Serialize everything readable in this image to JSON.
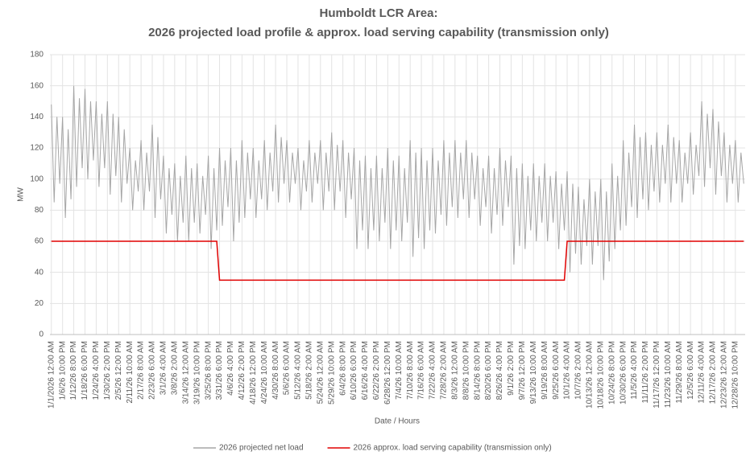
{
  "chart_data": {
    "type": "line",
    "title": [
      "Humboldt LCR Area:",
      "2026 projected load profile & approx. load serving capability (transmission only)"
    ],
    "xlabel": "Date / Hours",
    "ylabel": "MW",
    "categories": [
      "1/1/2026 12:00 AM",
      null,
      null,
      null,
      "1/6/26 10:00 PM",
      null,
      null,
      null,
      "1/12/26 8:00 PM",
      null,
      null,
      null,
      "1/18/26 6:00 PM",
      null,
      null,
      null,
      "1/24/26 4:00 PM",
      null,
      null,
      null,
      "1/30/26 2:00 PM",
      null,
      null,
      null,
      "2/5/26 12:00 PM",
      null,
      null,
      null,
      "2/11/26 10:00 AM",
      null,
      null,
      null,
      "2/17/26 8:00 AM",
      null,
      null,
      null,
      "2/23/26 6:00 AM",
      null,
      null,
      null,
      "3/1/26 4:00 AM",
      null,
      null,
      null,
      "3/8/26 2:00 AM",
      null,
      null,
      null,
      "3/14/26 12:00 AM",
      null,
      null,
      null,
      "3/19/26 10:00 PM",
      null,
      null,
      null,
      "3/25/26 8:00 PM",
      null,
      null,
      null,
      "3/31/26 6:00 PM",
      null,
      null,
      null,
      "4/6/26 4:00 PM",
      null,
      null,
      null,
      "4/12/26 2:00 PM",
      null,
      null,
      null,
      "4/18/26 12:00 PM",
      null,
      null,
      null,
      "4/24/26 10:00 AM",
      null,
      null,
      null,
      "4/30/26 8:00 AM",
      null,
      null,
      null,
      "5/6/26 6:00 AM",
      null,
      null,
      null,
      "5/12/26 4:00 AM",
      null,
      null,
      null,
      "5/18/26 2:00 AM",
      null,
      null,
      null,
      "5/24/26 12:00 AM",
      null,
      null,
      null,
      "5/29/26 10:00 PM",
      null,
      null,
      null,
      "6/4/26 8:00 PM",
      null,
      null,
      null,
      "6/10/26 6:00 PM",
      null,
      null,
      null,
      "6/16/26 4:00 PM",
      null,
      null,
      null,
      "6/22/26 2:00 PM",
      null,
      null,
      null,
      "6/28/26 12:00 PM",
      null,
      null,
      null,
      "7/4/26 10:00 AM",
      null,
      null,
      null,
      "7/10/26 8:00 AM",
      null,
      null,
      null,
      "7/16/26 6:00 AM",
      null,
      null,
      null,
      "7/22/26 4:00 AM",
      null,
      null,
      null,
      "7/28/26 2:00 AM",
      null,
      null,
      null,
      "8/3/26 12:00 AM",
      null,
      null,
      null,
      "8/8/26 10:00 PM",
      null,
      null,
      null,
      "8/14/26 8:00 PM",
      null,
      null,
      null,
      "8/20/26 6:00 PM",
      null,
      null,
      null,
      "8/26/26 4:00 PM",
      null,
      null,
      null,
      "9/1/26 2:00 PM",
      null,
      null,
      null,
      "9/7/26 12:00 PM",
      null,
      null,
      null,
      "9/13/26 10:00 AM",
      null,
      null,
      null,
      "9/19/26 8:00 AM",
      null,
      null,
      null,
      "9/25/26 6:00 AM",
      null,
      null,
      null,
      "10/1/26 4:00 AM",
      null,
      null,
      null,
      "10/7/26 2:00 AM",
      null,
      null,
      null,
      "10/13/26 12:00 AM",
      null,
      null,
      null,
      "10/18/26 10:00 PM",
      null,
      null,
      null,
      "10/24/26 8:00 PM",
      null,
      null,
      null,
      "10/30/26 6:00 PM",
      null,
      null,
      null,
      "11/5/26 4:00 PM",
      null,
      null,
      null,
      "11/11/26 2:00 PM",
      null,
      null,
      null,
      "11/17/26 12:00 PM",
      null,
      null,
      null,
      "11/23/26 10:00 AM",
      null,
      null,
      null,
      "11/29/26 8:00 AM",
      null,
      null,
      null,
      "12/5/26 6:00 AM",
      null,
      null,
      null,
      "12/11/26 4:00 AM",
      null,
      null,
      null,
      "12/17/26 2:00 AM",
      null,
      null,
      null,
      "12/23/26 12:00 AM",
      null,
      null,
      null,
      "12/28/26 10:00 PM",
      null,
      null,
      null
    ],
    "series": [
      {
        "name": "2026 projected net load",
        "color": "#a6a6a6",
        "values": [
          148,
          85,
          140,
          97,
          140,
          75,
          132,
          87,
          160,
          95,
          152,
          107,
          158,
          100,
          150,
          112,
          150,
          95,
          142,
          107,
          150,
          90,
          142,
          102,
          140,
          85,
          132,
          97,
          120,
          80,
          112,
          92,
          125,
          80,
          117,
          92,
          135,
          75,
          127,
          87,
          115,
          65,
          107,
          77,
          110,
          60,
          102,
          72,
          115,
          60,
          107,
          72,
          110,
          65,
          102,
          77,
          115,
          55,
          107,
          67,
          120,
          70,
          112,
          82,
          120,
          60,
          112,
          72,
          125,
          75,
          117,
          87,
          120,
          75,
          112,
          87,
          125,
          80,
          117,
          92,
          135,
          85,
          127,
          97,
          125,
          85,
          117,
          97,
          120,
          80,
          112,
          92,
          125,
          85,
          117,
          97,
          125,
          80,
          117,
          92,
          130,
          80,
          122,
          92,
          125,
          75,
          117,
          87,
          120,
          55,
          112,
          67,
          115,
          55,
          107,
          67,
          115,
          60,
          107,
          72,
          120,
          55,
          112,
          67,
          115,
          60,
          107,
          72,
          125,
          50,
          117,
          62,
          120,
          55,
          112,
          67,
          120,
          65,
          112,
          77,
          125,
          70,
          117,
          82,
          125,
          75,
          117,
          87,
          125,
          75,
          117,
          87,
          115,
          70,
          107,
          82,
          115,
          65,
          107,
          77,
          120,
          70,
          112,
          82,
          115,
          45,
          107,
          57,
          110,
          55,
          102,
          67,
          110,
          60,
          102,
          72,
          110,
          60,
          102,
          72,
          105,
          55,
          97,
          67,
          105,
          40,
          97,
          52,
          95,
          45,
          87,
          57,
          100,
          45,
          92,
          57,
          100,
          35,
          92,
          47,
          110,
          55,
          102,
          67,
          125,
          70,
          117,
          82,
          135,
          75,
          127,
          87,
          130,
          80,
          122,
          92,
          130,
          85,
          122,
          97,
          135,
          85,
          127,
          97,
          125,
          85,
          117,
          97,
          130,
          90,
          122,
          102,
          150,
          95,
          142,
          107,
          145,
          90,
          137,
          102,
          130,
          85,
          122,
          97,
          125,
          85,
          117,
          97
        ]
      },
      {
        "name": "2026 approx. load serving capability (transmission only)",
        "color": "#e00000",
        "values": [
          60,
          60,
          60,
          60,
          60,
          60,
          60,
          60,
          60,
          60,
          60,
          60,
          60,
          60,
          60,
          60,
          60,
          60,
          60,
          60,
          60,
          60,
          60,
          60,
          60,
          60,
          60,
          60,
          60,
          60,
          60,
          60,
          60,
          60,
          60,
          60,
          60,
          60,
          60,
          60,
          60,
          60,
          60,
          60,
          60,
          60,
          60,
          60,
          60,
          60,
          60,
          60,
          60,
          60,
          60,
          60,
          60,
          60,
          60,
          60,
          35,
          35,
          35,
          35,
          35,
          35,
          35,
          35,
          35,
          35,
          35,
          35,
          35,
          35,
          35,
          35,
          35,
          35,
          35,
          35,
          35,
          35,
          35,
          35,
          35,
          35,
          35,
          35,
          35,
          35,
          35,
          35,
          35,
          35,
          35,
          35,
          35,
          35,
          35,
          35,
          35,
          35,
          35,
          35,
          35,
          35,
          35,
          35,
          35,
          35,
          35,
          35,
          35,
          35,
          35,
          35,
          35,
          35,
          35,
          35,
          35,
          35,
          35,
          35,
          35,
          35,
          35,
          35,
          35,
          35,
          35,
          35,
          35,
          35,
          35,
          35,
          35,
          35,
          35,
          35,
          35,
          35,
          35,
          35,
          35,
          35,
          35,
          35,
          35,
          35,
          35,
          35,
          35,
          35,
          35,
          35,
          35,
          35,
          35,
          35,
          35,
          35,
          35,
          35,
          35,
          35,
          35,
          35,
          35,
          35,
          35,
          35,
          35,
          35,
          35,
          35,
          35,
          35,
          35,
          35,
          35,
          35,
          35,
          35,
          60,
          60,
          60,
          60,
          60,
          60,
          60,
          60,
          60,
          60,
          60,
          60,
          60,
          60,
          60,
          60,
          60,
          60,
          60,
          60,
          60,
          60,
          60,
          60,
          60,
          60,
          60,
          60,
          60,
          60,
          60,
          60,
          60,
          60,
          60,
          60,
          60,
          60,
          60,
          60,
          60,
          60,
          60,
          60,
          60,
          60,
          60,
          60,
          60,
          60,
          60,
          60,
          60,
          60,
          60,
          60,
          60,
          60,
          60,
          60,
          60,
          60,
          60,
          60
        ]
      }
    ],
    "ylim": [
      0,
      180
    ],
    "yticks": [
      0,
      20,
      40,
      60,
      80,
      100,
      120,
      140,
      160,
      180
    ],
    "grid": true
  }
}
